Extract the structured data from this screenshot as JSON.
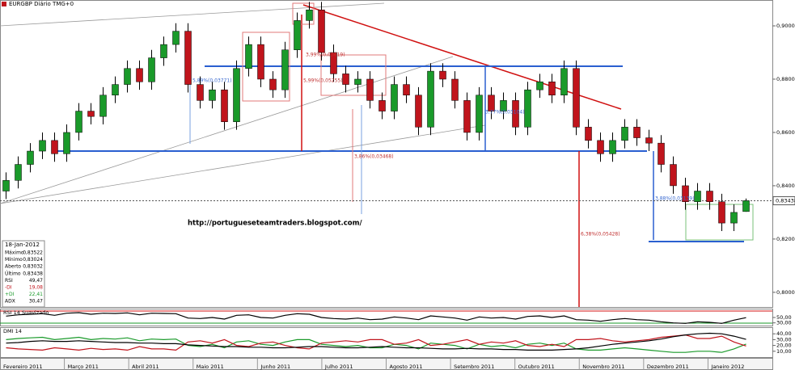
{
  "chart_data": [
    {
      "type": "candlestick",
      "title": "EURGBP Diário TMG+0",
      "categories": [
        null,
        null,
        null,
        null,
        null,
        null,
        null,
        null,
        null,
        null,
        null,
        null,
        null,
        null,
        null,
        null,
        null,
        null,
        null,
        null,
        null,
        null,
        null,
        null,
        null,
        null,
        null,
        null,
        null,
        null,
        null,
        null,
        null,
        null,
        null,
        null,
        null,
        null,
        null,
        null,
        null,
        null,
        null,
        null,
        null,
        null,
        null,
        null,
        null,
        null,
        null,
        null,
        null,
        null,
        null,
        null,
        null,
        null,
        null,
        null,
        null,
        null
      ],
      "open": [
        0.838,
        0.842,
        0.848,
        0.853,
        0.857,
        0.852,
        0.86,
        0.868,
        0.866,
        0.874,
        0.878,
        0.884,
        0.879,
        0.888,
        0.893,
        0.898,
        0.878,
        0.872,
        0.876,
        0.864,
        0.884,
        0.893,
        0.88,
        0.876,
        0.891,
        0.902,
        0.906,
        0.89,
        0.882,
        0.878,
        0.88,
        0.872,
        0.868,
        0.878,
        0.874,
        0.862,
        0.883,
        0.88,
        0.872,
        0.86,
        0.874,
        0.868,
        0.872,
        0.862,
        0.876,
        0.879,
        0.874,
        0.884,
        0.862,
        0.857,
        0.852,
        0.857,
        0.862,
        0.858,
        0.856,
        0.848,
        0.84,
        0.834,
        0.838,
        0.834,
        0.826,
        0.83032
      ],
      "high": [
        0.845,
        0.851,
        0.856,
        0.86,
        0.86,
        0.863,
        0.871,
        0.871,
        0.877,
        0.881,
        0.887,
        0.887,
        0.891,
        0.896,
        0.901,
        0.901,
        0.881,
        0.879,
        0.879,
        0.887,
        0.896,
        0.896,
        0.883,
        0.894,
        0.905,
        0.909,
        0.909,
        0.893,
        0.885,
        0.883,
        0.883,
        0.875,
        0.881,
        0.881,
        0.877,
        0.886,
        0.886,
        0.883,
        0.875,
        0.877,
        0.877,
        0.875,
        0.875,
        0.879,
        0.882,
        0.882,
        0.887,
        0.887,
        0.865,
        0.86,
        0.86,
        0.865,
        0.865,
        0.861,
        0.859,
        0.851,
        0.843,
        0.841,
        0.841,
        0.837,
        0.833,
        0.83522
      ],
      "low": [
        0.835,
        0.839,
        0.845,
        0.85,
        0.849,
        0.849,
        0.857,
        0.863,
        0.863,
        0.871,
        0.875,
        0.876,
        0.876,
        0.885,
        0.89,
        0.875,
        0.869,
        0.869,
        0.861,
        0.861,
        0.881,
        0.877,
        0.873,
        0.873,
        0.888,
        0.899,
        0.887,
        0.879,
        0.875,
        0.875,
        0.869,
        0.865,
        0.865,
        0.871,
        0.859,
        0.859,
        0.877,
        0.869,
        0.857,
        0.857,
        0.865,
        0.865,
        0.859,
        0.859,
        0.873,
        0.871,
        0.871,
        0.859,
        0.854,
        0.849,
        0.849,
        0.854,
        0.855,
        0.853,
        0.845,
        0.837,
        0.831,
        0.831,
        0.831,
        0.823,
        0.823,
        0.83024
      ],
      "close": [
        0.842,
        0.848,
        0.853,
        0.857,
        0.852,
        0.86,
        0.868,
        0.866,
        0.874,
        0.878,
        0.884,
        0.879,
        0.888,
        0.893,
        0.898,
        0.878,
        0.872,
        0.876,
        0.864,
        0.884,
        0.893,
        0.88,
        0.876,
        0.891,
        0.902,
        0.906,
        0.89,
        0.882,
        0.878,
        0.88,
        0.872,
        0.868,
        0.878,
        0.874,
        0.862,
        0.883,
        0.88,
        0.872,
        0.86,
        0.874,
        0.868,
        0.872,
        0.862,
        0.876,
        0.879,
        0.874,
        0.884,
        0.862,
        0.857,
        0.852,
        0.857,
        0.862,
        0.858,
        0.856,
        0.848,
        0.84,
        0.834,
        0.838,
        0.834,
        0.826,
        0.83,
        0.83438
      ],
      "up_color": "#1a9a2a",
      "down_color": "#c0141c",
      "ylim": [
        0.7945,
        0.9091
      ],
      "yticks": [
        {
          "value": 0.9,
          "label": "0,90000"
        },
        {
          "value": 0.88,
          "label": "0,88000"
        },
        {
          "value": 0.86,
          "label": "0,86000"
        },
        {
          "value": 0.84,
          "label": "0,84000"
        },
        {
          "value": 0.82,
          "label": "0,82000"
        },
        {
          "value": 0.8,
          "label": "0,80000"
        }
      ],
      "last_price": {
        "value": 0.83438,
        "label": "0,83438"
      },
      "months": [
        "Fevereiro 2011",
        "Março 2011",
        "Abril 2011",
        "Maio 2011",
        "Junho 2011",
        "Julho 2011",
        "Agosto 2011",
        "Setembro 2011",
        "Outubro 2011",
        "Novembro 2011",
        "Dezembro 2011",
        "Janeiro 2012"
      ]
    },
    {
      "type": "line",
      "title": "RSI 14 Suavizado",
      "series": [
        {
          "name": "RSI",
          "color": "#000000",
          "values": [
            55,
            60,
            62,
            64,
            58,
            66,
            68,
            62,
            66,
            65,
            67,
            60,
            66,
            65,
            64,
            48,
            46,
            50,
            44,
            58,
            60,
            50,
            48,
            58,
            64,
            62,
            50,
            46,
            44,
            48,
            42,
            44,
            52,
            48,
            42,
            56,
            52,
            48,
            40,
            52,
            48,
            50,
            44,
            54,
            56,
            50,
            56,
            42,
            40,
            36,
            42,
            46,
            42,
            40,
            34,
            30,
            28,
            34,
            32,
            28,
            40,
            49.47
          ]
        }
      ],
      "ylim": [
        20,
        80
      ],
      "yticks": [
        {
          "value": 50,
          "label": "50,00"
        },
        {
          "value": 30,
          "label": "30,00"
        }
      ]
    },
    {
      "type": "line",
      "title": "DMI 14",
      "series": [
        {
          "name": "+DI",
          "color": "#1a9a2a",
          "values": [
            30,
            32,
            33,
            34,
            30,
            32,
            34,
            30,
            32,
            31,
            33,
            28,
            31,
            30,
            31,
            20,
            18,
            22,
            16,
            26,
            28,
            22,
            20,
            26,
            30,
            30,
            22,
            20,
            18,
            20,
            16,
            16,
            22,
            20,
            14,
            24,
            22,
            20,
            14,
            22,
            18,
            20,
            16,
            22,
            24,
            20,
            24,
            14,
            12,
            12,
            14,
            16,
            14,
            12,
            10,
            8,
            8,
            10,
            10,
            8,
            14,
            22.41
          ]
        },
        {
          "name": "-DI",
          "color": "#c0141c",
          "values": [
            16,
            14,
            13,
            12,
            16,
            14,
            12,
            15,
            13,
            14,
            12,
            18,
            14,
            14,
            12,
            26,
            28,
            24,
            30,
            20,
            18,
            24,
            26,
            20,
            16,
            14,
            24,
            26,
            28,
            26,
            30,
            30,
            22,
            24,
            30,
            20,
            22,
            26,
            30,
            22,
            26,
            24,
            28,
            20,
            18,
            22,
            18,
            30,
            30,
            32,
            28,
            26,
            28,
            30,
            34,
            36,
            38,
            32,
            32,
            36,
            26,
            19.08
          ]
        },
        {
          "name": "ADX",
          "color": "#000000",
          "values": [
            24,
            25,
            27,
            28,
            27,
            27,
            28,
            27,
            26,
            25,
            25,
            24,
            24,
            23,
            23,
            21,
            20,
            19,
            18,
            18,
            17,
            17,
            16,
            16,
            17,
            18,
            18,
            17,
            16,
            16,
            17,
            18,
            17,
            16,
            16,
            15,
            14,
            14,
            15,
            14,
            14,
            13,
            13,
            12,
            12,
            12,
            13,
            14,
            16,
            19,
            22,
            24,
            26,
            28,
            31,
            35,
            38,
            40,
            41,
            40,
            36,
            30.47
          ]
        }
      ],
      "ylim": [
        0,
        50
      ],
      "yticks": [
        {
          "value": 40,
          "label": "40,00"
        },
        {
          "value": 30,
          "label": "30,00"
        },
        {
          "value": 20,
          "label": "20,00"
        },
        {
          "value": 10,
          "label": "10,00"
        }
      ]
    }
  ],
  "watermark_url": "http://portugueseteamtraders.blogspot.com/",
  "annotations": [
    "5,89%(0,03771)",
    "3,99%(0,03619)",
    "5,99%(0,05255)",
    "3,86%(0,03468)",
    "3,77%(0,03104)",
    "3,88%(0,03139)",
    "6,38%(0,05428)"
  ],
  "info_box": {
    "date": "18-Jan-2012",
    "rows": [
      [
        "Máximo",
        "0,83522"
      ],
      [
        "Mínimo",
        "0,83024"
      ],
      [
        "Aberto",
        "0,83032"
      ],
      [
        "Último",
        "0,83438"
      ],
      [
        "RSI",
        "49,47"
      ],
      [
        "-DI",
        "19,08"
      ],
      [
        "+DI",
        "22,41"
      ],
      [
        "ADX",
        "30,47"
      ]
    ]
  }
}
